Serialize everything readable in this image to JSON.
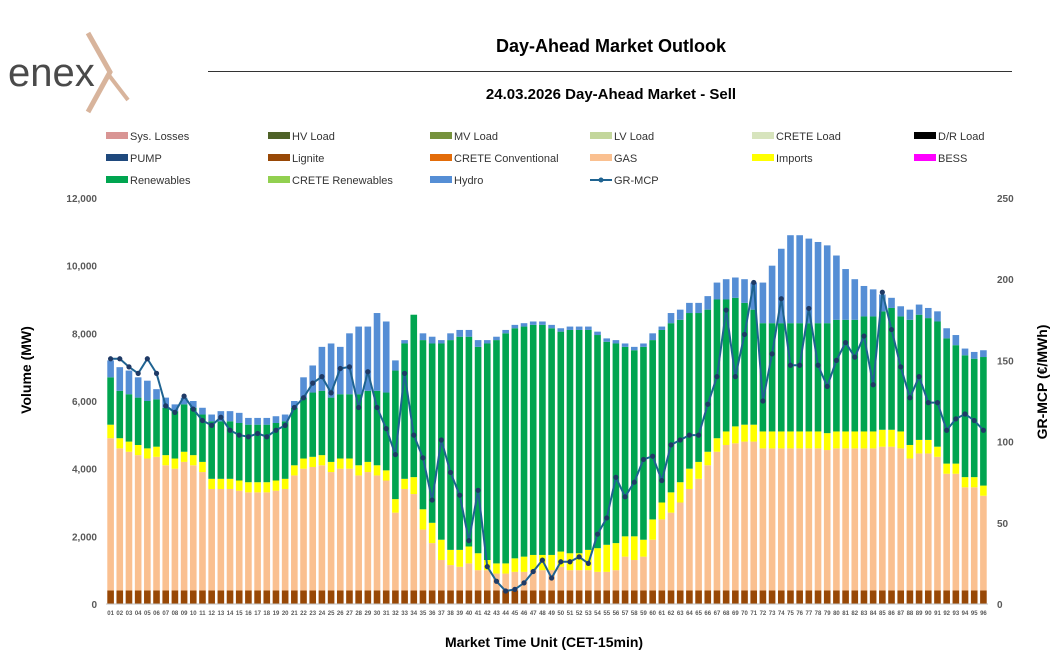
{
  "brand": {
    "name": "enex"
  },
  "header": {
    "title": "Day-Ahead Market Outlook",
    "subtitle": "24.03.2026  Day-Ahead Market - Sell"
  },
  "chart_data": {
    "type": "bar",
    "stacked": true,
    "title": "Day-Ahead Market Outlook",
    "subtitle": "24.03.2026  Day-Ahead Market - Sell",
    "xlabel": "Market Time Unit (CET-15min)",
    "ylabel": "Volume (MW)",
    "y2label": "GR-MCP (€/MWh)",
    "ylim": [
      0,
      12000
    ],
    "y2lim": [
      0,
      250
    ],
    "yticks": [
      "0",
      "2,000",
      "4,000",
      "6,000",
      "8,000",
      "10,000",
      "12,000"
    ],
    "y2ticks": [
      "0",
      "50",
      "100",
      "150",
      "200",
      "250"
    ],
    "categories": [
      "01",
      "02",
      "03",
      "04",
      "05",
      "06",
      "07",
      "08",
      "09",
      "10",
      "11",
      "12",
      "13",
      "14",
      "15",
      "16",
      "17",
      "18",
      "19",
      "20",
      "21",
      "22",
      "23",
      "24",
      "25",
      "26",
      "27",
      "28",
      "29",
      "30",
      "31",
      "32",
      "33",
      "34",
      "35",
      "36",
      "37",
      "38",
      "39",
      "40",
      "41",
      "42",
      "43",
      "44",
      "45",
      "46",
      "47",
      "48",
      "49",
      "50",
      "51",
      "52",
      "53",
      "54",
      "55",
      "56",
      "57",
      "58",
      "59",
      "60",
      "61",
      "62",
      "63",
      "64",
      "65",
      "66",
      "67",
      "68",
      "69",
      "70",
      "71",
      "72",
      "73",
      "74",
      "75",
      "76",
      "77",
      "78",
      "79",
      "80",
      "81",
      "82",
      "83",
      "84",
      "85",
      "86",
      "87",
      "88",
      "89",
      "90",
      "91",
      "92",
      "93",
      "94",
      "95",
      "96"
    ],
    "legend": [
      {
        "name": "Sys. Losses",
        "color": "#d99594",
        "kind": "bar"
      },
      {
        "name": "HV Load",
        "color": "#4f6228",
        "kind": "bar"
      },
      {
        "name": "MV Load",
        "color": "#76923c",
        "kind": "bar"
      },
      {
        "name": "LV Load",
        "color": "#c3d69b",
        "kind": "bar"
      },
      {
        "name": "CRETE Load",
        "color": "#d7e4bd",
        "kind": "bar"
      },
      {
        "name": "D/R Load",
        "color": "#000000",
        "kind": "bar"
      },
      {
        "name": "PUMP",
        "color": "#1f497d",
        "kind": "bar"
      },
      {
        "name": "Lignite",
        "color": "#984806",
        "kind": "bar"
      },
      {
        "name": "CRETE Conventional",
        "color": "#e36c09",
        "kind": "bar"
      },
      {
        "name": "GAS",
        "color": "#fac090",
        "kind": "bar"
      },
      {
        "name": "Imports",
        "color": "#ffff00",
        "kind": "bar"
      },
      {
        "name": "BESS",
        "color": "#ff00ff",
        "kind": "bar"
      },
      {
        "name": "Renewables",
        "color": "#00a550",
        "kind": "bar"
      },
      {
        "name": "CRETE Renewables",
        "color": "#92d050",
        "kind": "bar"
      },
      {
        "name": "Hydro",
        "color": "#558ed5",
        "kind": "bar"
      },
      {
        "name": "GR-MCP",
        "color": "#1f6391",
        "kind": "line"
      }
    ],
    "series": [
      {
        "name": "Lignite",
        "color": "#984806",
        "values": [
          400,
          400,
          400,
          400,
          400,
          400,
          400,
          400,
          400,
          400,
          400,
          400,
          400,
          400,
          400,
          400,
          400,
          400,
          400,
          400,
          400,
          400,
          400,
          400,
          400,
          400,
          400,
          400,
          400,
          400,
          400,
          400,
          400,
          400,
          400,
          400,
          400,
          400,
          400,
          400,
          400,
          400,
          400,
          400,
          400,
          400,
          400,
          400,
          400,
          400,
          400,
          400,
          400,
          400,
          400,
          400,
          400,
          400,
          400,
          400,
          400,
          400,
          400,
          400,
          400,
          400,
          400,
          400,
          400,
          400,
          400,
          400,
          400,
          400,
          400,
          400,
          400,
          400,
          400,
          400,
          400,
          400,
          400,
          400,
          400,
          400,
          400,
          400,
          400,
          400,
          400,
          400,
          400,
          400,
          400,
          400
        ]
      },
      {
        "name": "GAS",
        "color": "#fac090",
        "values": [
          4500,
          4200,
          4100,
          4000,
          3900,
          3950,
          3700,
          3600,
          3800,
          3700,
          3500,
          3000,
          3000,
          3000,
          2950,
          2900,
          2900,
          2900,
          2950,
          3000,
          3400,
          3600,
          3650,
          3700,
          3500,
          3600,
          3600,
          3400,
          3500,
          3400,
          3250,
          2300,
          3000,
          2850,
          1800,
          1400,
          900,
          750,
          700,
          800,
          600,
          600,
          500,
          500,
          550,
          550,
          600,
          600,
          600,
          700,
          600,
          600,
          600,
          550,
          550,
          600,
          1000,
          900,
          1000,
          1500,
          2100,
          2300,
          2600,
          3000,
          3300,
          3700,
          4100,
          4300,
          4350,
          4400,
          4400,
          4200,
          4200,
          4200,
          4200,
          4200,
          4200,
          4200,
          4150,
          4200,
          4200,
          4200,
          4200,
          4200,
          4250,
          4250,
          4200,
          3900,
          4050,
          4050,
          3950,
          3450,
          3450,
          3050,
          3050,
          2800
        ]
      },
      {
        "name": "Imports",
        "color": "#ffff00",
        "values": [
          400,
          300,
          300,
          300,
          300,
          300,
          300,
          300,
          300,
          300,
          300,
          300,
          300,
          300,
          300,
          300,
          300,
          300,
          300,
          300,
          300,
          300,
          300,
          300,
          300,
          300,
          300,
          300,
          300,
          300,
          300,
          400,
          300,
          500,
          600,
          600,
          600,
          450,
          500,
          500,
          500,
          300,
          300,
          300,
          400,
          450,
          450,
          450,
          450,
          450,
          500,
          500,
          600,
          700,
          800,
          800,
          600,
          700,
          500,
          600,
          500,
          600,
          600,
          600,
          500,
          400,
          400,
          400,
          500,
          500,
          500,
          500,
          500,
          500,
          500,
          500,
          500,
          500,
          500,
          500,
          500,
          500,
          500,
          500,
          500,
          500,
          500,
          400,
          400,
          400,
          300,
          300,
          300,
          300,
          300,
          300
        ]
      },
      {
        "name": "Renewables",
        "color": "#00a550",
        "values": [
          1400,
          1400,
          1400,
          1400,
          1400,
          1400,
          1400,
          1400,
          1400,
          1400,
          1400,
          1700,
          1700,
          1700,
          1700,
          1700,
          1700,
          1700,
          1700,
          1700,
          1700,
          1800,
          1900,
          1900,
          1900,
          1900,
          1900,
          2100,
          2100,
          2200,
          2300,
          3800,
          4000,
          4800,
          5000,
          5300,
          5800,
          6200,
          6300,
          6200,
          6100,
          6400,
          6600,
          6800,
          6800,
          6800,
          6800,
          6800,
          6700,
          6500,
          6600,
          6600,
          6500,
          6300,
          6000,
          5900,
          5600,
          5500,
          5700,
          5300,
          5100,
          5000,
          4800,
          4600,
          4400,
          4200,
          4100,
          3900,
          3800,
          3600,
          3400,
          3200,
          3200,
          3200,
          3200,
          3200,
          3200,
          3200,
          3250,
          3300,
          3300,
          3300,
          3400,
          3400,
          3500,
          3600,
          3400,
          3700,
          3700,
          3600,
          3700,
          3700,
          3500,
          3600,
          3500,
          3800
        ]
      },
      {
        "name": "Hydro",
        "color": "#558ed5",
        "values": [
          500,
          700,
          700,
          600,
          600,
          300,
          300,
          200,
          200,
          200,
          200,
          200,
          300,
          300,
          300,
          200,
          200,
          200,
          200,
          200,
          200,
          600,
          800,
          1300,
          1600,
          1400,
          1800,
          2000,
          1900,
          2300,
          2100,
          300,
          100,
          0,
          200,
          200,
          100,
          200,
          200,
          200,
          200,
          100,
          100,
          100,
          100,
          100,
          100,
          100,
          100,
          100,
          100,
          100,
          100,
          100,
          100,
          100,
          100,
          100,
          100,
          200,
          100,
          300,
          300,
          300,
          300,
          400,
          500,
          600,
          600,
          700,
          800,
          1200,
          1700,
          2200,
          2600,
          2600,
          2500,
          2400,
          2300,
          1900,
          1500,
          1200,
          900,
          800,
          500,
          300,
          300,
          300,
          300,
          300,
          300,
          300,
          300,
          200,
          200,
          200
        ]
      }
    ],
    "line": {
      "name": "GR-MCP",
      "color": "#1f6391",
      "axis": "y2",
      "values": [
        151,
        151,
        146,
        142,
        151,
        142,
        122,
        118,
        128,
        120,
        113,
        110,
        115,
        107,
        104,
        103,
        105,
        103,
        107,
        110,
        121,
        127,
        136,
        140,
        130,
        145,
        146,
        121,
        143,
        121,
        108,
        92,
        142,
        104,
        90,
        64,
        101,
        81,
        67,
        39,
        70,
        23,
        14,
        8,
        9,
        13,
        20,
        27,
        16,
        26,
        26,
        29,
        25,
        43,
        53,
        78,
        66,
        75,
        89,
        91,
        76,
        98,
        101,
        104,
        104,
        123,
        140,
        181,
        140,
        166,
        198,
        125,
        154,
        188,
        147,
        147,
        182,
        147,
        134,
        150,
        161,
        152,
        165,
        135,
        192,
        169,
        146,
        127,
        140,
        124,
        124,
        107,
        114,
        117,
        113,
        107
      ]
    }
  }
}
